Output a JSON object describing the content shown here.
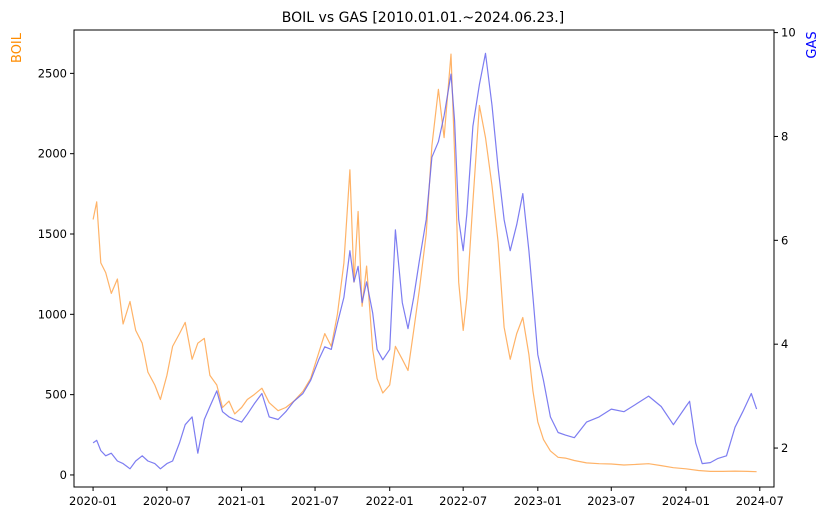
{
  "chart_data": {
    "type": "line",
    "title": "BOIL vs GAS [2010.01.01.~2024.06.23.]",
    "x_ticks": [
      "2020-01",
      "2020-07",
      "2021-01",
      "2021-07",
      "2022-01",
      "2022-07",
      "2023-01",
      "2023-07",
      "2024-01",
      "2024-07"
    ],
    "xlim": [
      "2019-11-15",
      "2024-08-05"
    ],
    "left_axis": {
      "label": "BOIL",
      "ylim": [
        -75,
        2770
      ],
      "ticks": [
        0,
        500,
        1000,
        1500,
        2000,
        2500
      ],
      "color": "#ff8c00"
    },
    "right_axis": {
      "label": "GAS",
      "ylim": [
        1.25,
        10.05
      ],
      "ticks": [
        2,
        4,
        6,
        8,
        10
      ],
      "color": "#0000ff"
    },
    "grid": false,
    "series": [
      {
        "axis": "left",
        "color": "#ffa64d",
        "points": [
          [
            "2020-01-01",
            1590
          ],
          [
            "2020-01-10",
            1700
          ],
          [
            "2020-01-20",
            1320
          ],
          [
            "2020-02-01",
            1260
          ],
          [
            "2020-02-15",
            1130
          ],
          [
            "2020-03-01",
            1220
          ],
          [
            "2020-03-15",
            940
          ],
          [
            "2020-04-01",
            1080
          ],
          [
            "2020-04-15",
            900
          ],
          [
            "2020-05-01",
            820
          ],
          [
            "2020-05-15",
            640
          ],
          [
            "2020-06-01",
            560
          ],
          [
            "2020-06-15",
            470
          ],
          [
            "2020-07-01",
            620
          ],
          [
            "2020-07-15",
            800
          ],
          [
            "2020-08-01",
            880
          ],
          [
            "2020-08-15",
            950
          ],
          [
            "2020-09-01",
            720
          ],
          [
            "2020-09-15",
            820
          ],
          [
            "2020-10-01",
            850
          ],
          [
            "2020-10-15",
            620
          ],
          [
            "2020-11-01",
            560
          ],
          [
            "2020-11-15",
            420
          ],
          [
            "2020-12-01",
            460
          ],
          [
            "2020-12-15",
            380
          ],
          [
            "2021-01-01",
            420
          ],
          [
            "2021-01-15",
            470
          ],
          [
            "2021-02-01",
            500
          ],
          [
            "2021-02-20",
            540
          ],
          [
            "2021-03-10",
            450
          ],
          [
            "2021-04-01",
            400
          ],
          [
            "2021-04-20",
            420
          ],
          [
            "2021-05-10",
            460
          ],
          [
            "2021-06-01",
            520
          ],
          [
            "2021-06-20",
            600
          ],
          [
            "2021-07-10",
            760
          ],
          [
            "2021-07-25",
            880
          ],
          [
            "2021-08-10",
            800
          ],
          [
            "2021-08-25",
            1000
          ],
          [
            "2021-09-10",
            1320
          ],
          [
            "2021-09-25",
            1900
          ],
          [
            "2021-10-05",
            1200
          ],
          [
            "2021-10-15",
            1640
          ],
          [
            "2021-10-25",
            1050
          ],
          [
            "2021-11-05",
            1300
          ],
          [
            "2021-11-20",
            780
          ],
          [
            "2021-12-01",
            600
          ],
          [
            "2021-12-15",
            510
          ],
          [
            "2022-01-01",
            560
          ],
          [
            "2022-01-15",
            800
          ],
          [
            "2022-02-01",
            720
          ],
          [
            "2022-02-15",
            650
          ],
          [
            "2022-03-01",
            900
          ],
          [
            "2022-03-15",
            1150
          ],
          [
            "2022-04-01",
            1500
          ],
          [
            "2022-04-15",
            2050
          ],
          [
            "2022-05-01",
            2400
          ],
          [
            "2022-05-15",
            2100
          ],
          [
            "2022-06-01",
            2620
          ],
          [
            "2022-06-10",
            2000
          ],
          [
            "2022-06-20",
            1200
          ],
          [
            "2022-07-01",
            900
          ],
          [
            "2022-07-10",
            1100
          ],
          [
            "2022-07-25",
            1700
          ],
          [
            "2022-08-10",
            2300
          ],
          [
            "2022-08-25",
            2100
          ],
          [
            "2022-09-10",
            1800
          ],
          [
            "2022-09-25",
            1450
          ],
          [
            "2022-10-10",
            920
          ],
          [
            "2022-10-25",
            720
          ],
          [
            "2022-11-10",
            880
          ],
          [
            "2022-11-25",
            980
          ],
          [
            "2022-12-10",
            750
          ],
          [
            "2022-12-20",
            520
          ],
          [
            "2023-01-01",
            330
          ],
          [
            "2023-01-15",
            220
          ],
          [
            "2023-02-01",
            150
          ],
          [
            "2023-02-20",
            110
          ],
          [
            "2023-03-10",
            105
          ],
          [
            "2023-04-01",
            90
          ],
          [
            "2023-05-01",
            75
          ],
          [
            "2023-06-01",
            70
          ],
          [
            "2023-07-01",
            68
          ],
          [
            "2023-08-01",
            62
          ],
          [
            "2023-09-01",
            66
          ],
          [
            "2023-10-01",
            70
          ],
          [
            "2023-11-01",
            58
          ],
          [
            "2023-12-01",
            45
          ],
          [
            "2024-01-01",
            38
          ],
          [
            "2024-02-01",
            28
          ],
          [
            "2024-03-01",
            22
          ],
          [
            "2024-04-01",
            22
          ],
          [
            "2024-05-01",
            24
          ],
          [
            "2024-06-01",
            22
          ],
          [
            "2024-06-23",
            20
          ]
        ]
      },
      {
        "axis": "right",
        "color": "#6666ee",
        "points": [
          [
            "2020-01-01",
            2.1
          ],
          [
            "2020-01-10",
            2.15
          ],
          [
            "2020-01-20",
            1.95
          ],
          [
            "2020-02-01",
            1.85
          ],
          [
            "2020-02-15",
            1.9
          ],
          [
            "2020-03-01",
            1.75
          ],
          [
            "2020-03-15",
            1.7
          ],
          [
            "2020-04-01",
            1.6
          ],
          [
            "2020-04-15",
            1.75
          ],
          [
            "2020-05-01",
            1.85
          ],
          [
            "2020-05-15",
            1.75
          ],
          [
            "2020-06-01",
            1.7
          ],
          [
            "2020-06-15",
            1.6
          ],
          [
            "2020-07-01",
            1.7
          ],
          [
            "2020-07-15",
            1.75
          ],
          [
            "2020-08-01",
            2.1
          ],
          [
            "2020-08-15",
            2.45
          ],
          [
            "2020-09-01",
            2.6
          ],
          [
            "2020-09-15",
            1.9
          ],
          [
            "2020-10-01",
            2.55
          ],
          [
            "2020-10-15",
            2.8
          ],
          [
            "2020-11-01",
            3.1
          ],
          [
            "2020-11-15",
            2.7
          ],
          [
            "2020-12-01",
            2.6
          ],
          [
            "2020-12-15",
            2.55
          ],
          [
            "2021-01-01",
            2.5
          ],
          [
            "2021-01-15",
            2.65
          ],
          [
            "2021-02-01",
            2.85
          ],
          [
            "2021-02-20",
            3.05
          ],
          [
            "2021-03-10",
            2.6
          ],
          [
            "2021-04-01",
            2.55
          ],
          [
            "2021-04-20",
            2.7
          ],
          [
            "2021-05-10",
            2.9
          ],
          [
            "2021-06-01",
            3.05
          ],
          [
            "2021-06-20",
            3.3
          ],
          [
            "2021-07-10",
            3.7
          ],
          [
            "2021-07-25",
            3.95
          ],
          [
            "2021-08-10",
            3.9
          ],
          [
            "2021-08-25",
            4.4
          ],
          [
            "2021-09-10",
            4.9
          ],
          [
            "2021-09-25",
            5.8
          ],
          [
            "2021-10-05",
            5.2
          ],
          [
            "2021-10-15",
            5.5
          ],
          [
            "2021-10-25",
            4.8
          ],
          [
            "2021-11-05",
            5.2
          ],
          [
            "2021-11-20",
            4.6
          ],
          [
            "2021-12-01",
            3.9
          ],
          [
            "2021-12-15",
            3.7
          ],
          [
            "2022-01-01",
            3.9
          ],
          [
            "2022-01-15",
            6.2
          ],
          [
            "2022-02-01",
            4.8
          ],
          [
            "2022-02-15",
            4.3
          ],
          [
            "2022-03-01",
            4.9
          ],
          [
            "2022-03-15",
            5.6
          ],
          [
            "2022-04-01",
            6.4
          ],
          [
            "2022-04-15",
            7.6
          ],
          [
            "2022-05-01",
            7.9
          ],
          [
            "2022-05-15",
            8.4
          ],
          [
            "2022-06-01",
            9.2
          ],
          [
            "2022-06-10",
            8.3
          ],
          [
            "2022-06-20",
            6.4
          ],
          [
            "2022-07-01",
            5.8
          ],
          [
            "2022-07-10",
            6.5
          ],
          [
            "2022-07-25",
            8.2
          ],
          [
            "2022-08-10",
            9.0
          ],
          [
            "2022-08-25",
            9.6
          ],
          [
            "2022-09-10",
            8.6
          ],
          [
            "2022-09-25",
            7.4
          ],
          [
            "2022-10-10",
            6.4
          ],
          [
            "2022-10-25",
            5.8
          ],
          [
            "2022-11-10",
            6.3
          ],
          [
            "2022-11-25",
            6.9
          ],
          [
            "2022-12-10",
            5.8
          ],
          [
            "2022-12-20",
            4.9
          ],
          [
            "2023-01-01",
            3.8
          ],
          [
            "2023-01-15",
            3.3
          ],
          [
            "2023-02-01",
            2.6
          ],
          [
            "2023-02-20",
            2.3
          ],
          [
            "2023-03-10",
            2.25
          ],
          [
            "2023-04-01",
            2.2
          ],
          [
            "2023-05-01",
            2.5
          ],
          [
            "2023-06-01",
            2.6
          ],
          [
            "2023-07-01",
            2.75
          ],
          [
            "2023-08-01",
            2.7
          ],
          [
            "2023-09-01",
            2.85
          ],
          [
            "2023-10-01",
            3.0
          ],
          [
            "2023-11-01",
            2.8
          ],
          [
            "2023-12-01",
            2.45
          ],
          [
            "2024-01-01",
            2.8
          ],
          [
            "2024-01-10",
            2.9
          ],
          [
            "2024-01-25",
            2.1
          ],
          [
            "2024-02-10",
            1.7
          ],
          [
            "2024-03-01",
            1.72
          ],
          [
            "2024-03-20",
            1.8
          ],
          [
            "2024-04-10",
            1.85
          ],
          [
            "2024-05-01",
            2.4
          ],
          [
            "2024-05-20",
            2.7
          ],
          [
            "2024-06-10",
            3.05
          ],
          [
            "2024-06-23",
            2.75
          ]
        ]
      }
    ]
  }
}
